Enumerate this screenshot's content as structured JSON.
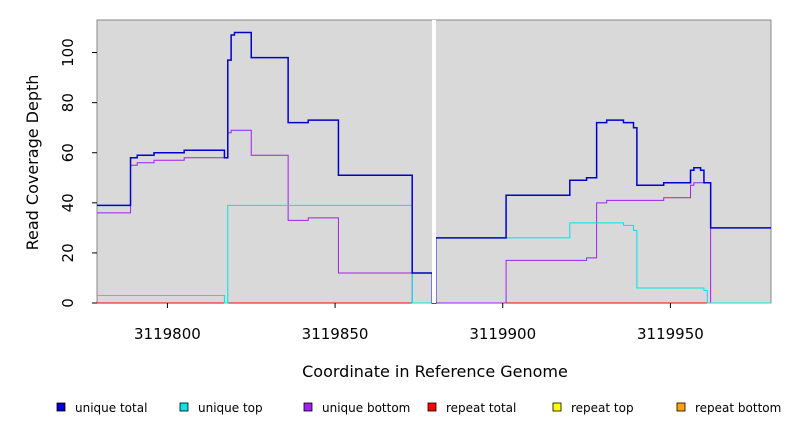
{
  "chart_data": {
    "type": "line",
    "step": true,
    "xlabel": "Coordinate in Reference Genome",
    "ylabel": "Read Coverage Depth",
    "xlim": [
      3119779,
      3119980
    ],
    "ylim": [
      0,
      113
    ],
    "x_ticks": [
      3119800,
      3119850,
      3119900,
      3119950
    ],
    "y_ticks": [
      0,
      20,
      40,
      60,
      80,
      100
    ],
    "divider_x": 3119879.5,
    "background": "#d9d9d9",
    "grid": false,
    "legend_position": "bottom",
    "legend": [
      {
        "label": "unique total",
        "color": "#0000cc"
      },
      {
        "label": "unique top",
        "color": "#00e5e5"
      },
      {
        "label": "unique bottom",
        "color": "#a020f0"
      },
      {
        "label": "repeat total",
        "color": "#ff0000"
      },
      {
        "label": "repeat top",
        "color": "#ffff00"
      },
      {
        "label": "repeat bottom",
        "color": "#ffa500"
      }
    ],
    "series": [
      {
        "name": "unique total",
        "color": "#0000cc",
        "steps": [
          [
            3119779,
            39
          ],
          [
            3119789,
            58
          ],
          [
            3119791,
            59
          ],
          [
            3119796,
            60
          ],
          [
            3119805,
            61
          ],
          [
            3119817,
            58
          ],
          [
            3119818,
            97
          ],
          [
            3119819,
            107
          ],
          [
            3119820,
            108
          ],
          [
            3119825,
            98
          ],
          [
            3119836,
            72
          ],
          [
            3119842,
            73
          ],
          [
            3119851,
            51
          ],
          [
            3119873,
            12
          ],
          [
            3119879,
            0
          ],
          [
            3119880,
            26
          ],
          [
            3119901,
            43
          ],
          [
            3119920,
            49
          ],
          [
            3119925,
            50
          ],
          [
            3119928,
            72
          ],
          [
            3119931,
            73
          ],
          [
            3119936,
            72
          ],
          [
            3119939,
            70
          ],
          [
            3119940,
            47
          ],
          [
            3119948,
            48
          ],
          [
            3119956,
            53
          ],
          [
            3119957,
            54
          ],
          [
            3119959,
            53
          ],
          [
            3119960,
            48
          ],
          [
            3119962,
            30
          ],
          [
            3119980,
            30
          ]
        ]
      },
      {
        "name": "unique top",
        "color": "#00e5e5",
        "steps": [
          [
            3119779,
            3
          ],
          [
            3119817,
            0
          ],
          [
            3119818,
            39
          ],
          [
            3119873,
            0
          ],
          [
            3119880,
            26
          ],
          [
            3119920,
            32
          ],
          [
            3119936,
            31
          ],
          [
            3119939,
            29
          ],
          [
            3119940,
            6
          ],
          [
            3119960,
            5
          ],
          [
            3119961,
            0
          ],
          [
            3119980,
            0
          ]
        ]
      },
      {
        "name": "unique bottom",
        "color": "#a020f0",
        "steps": [
          [
            3119779,
            36
          ],
          [
            3119789,
            55
          ],
          [
            3119791,
            56
          ],
          [
            3119796,
            57
          ],
          [
            3119805,
            58
          ],
          [
            3119818,
            68
          ],
          [
            3119819,
            69
          ],
          [
            3119825,
            59
          ],
          [
            3119836,
            33
          ],
          [
            3119842,
            34
          ],
          [
            3119851,
            12
          ],
          [
            3119873,
            0
          ],
          [
            3119901,
            17
          ],
          [
            3119925,
            18
          ],
          [
            3119928,
            40
          ],
          [
            3119931,
            41
          ],
          [
            3119948,
            42
          ],
          [
            3119956,
            47
          ],
          [
            3119957,
            48
          ],
          [
            3119962,
            0
          ],
          [
            3119980,
            0
          ]
        ]
      },
      {
        "name": "repeat total",
        "color": "#ff0000",
        "steps": [
          [
            3119779,
            0
          ],
          [
            3119980,
            0
          ]
        ]
      },
      {
        "name": "repeat top",
        "color": "#ffff00",
        "steps": [
          [
            3119779,
            0
          ],
          [
            3119980,
            0
          ]
        ]
      },
      {
        "name": "repeat bottom",
        "color": "#ffa500",
        "steps": [
          [
            3119779,
            0
          ],
          [
            3119980,
            0
          ]
        ]
      }
    ]
  }
}
